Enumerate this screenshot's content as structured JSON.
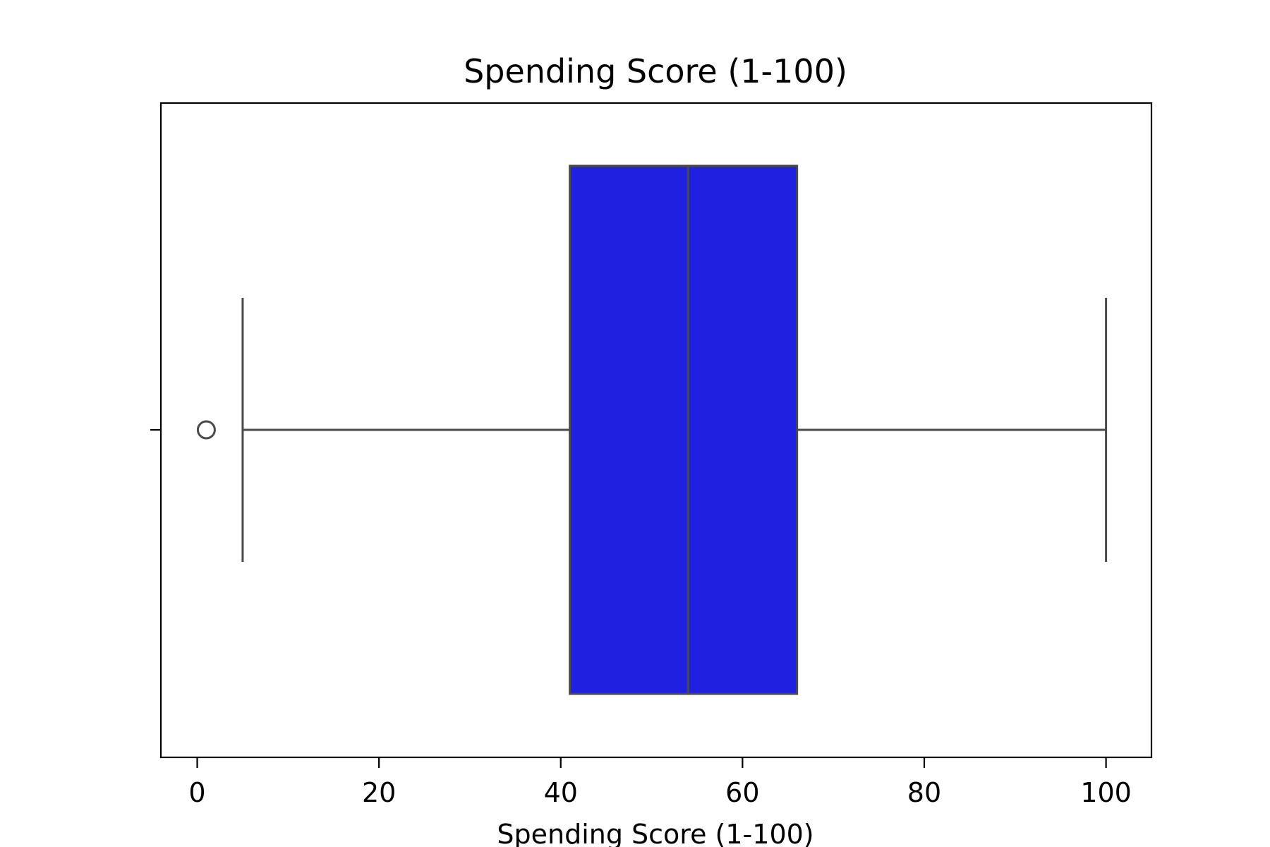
{
  "chart_data": {
    "type": "box",
    "title": "Spending Score (1-100)",
    "xlabel": "Spending Score (1-100)",
    "ylabel": "",
    "orientation": "horizontal",
    "xlim": [
      -4,
      105
    ],
    "xticks": [
      0,
      20,
      40,
      60,
      80,
      100
    ],
    "xtick_labels": [
      "0",
      "20",
      "40",
      "60",
      "80",
      "100"
    ],
    "grid": false,
    "legend": "none",
    "series": [
      {
        "whisker_low": 5,
        "q1": 41,
        "median": 54,
        "q3": 66,
        "whisker_high": 100,
        "outliers": [
          1
        ]
      }
    ],
    "colors": {
      "box_fill": "#2020e0",
      "line": "#4a4a4a",
      "axes": "#000000"
    }
  }
}
